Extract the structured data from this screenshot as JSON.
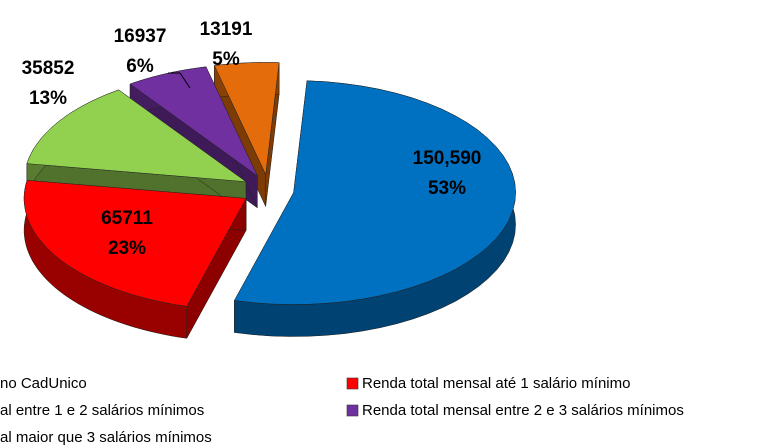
{
  "chart_data": {
    "type": "pie3d",
    "categories": [
      "no CadUnico",
      "Renda total mensal até 1 salário mínimo",
      "al entre 1 e 2 salários mínimos",
      "Renda total mensal entre 2 e 3 salários mínimos",
      "al maior que 3 salários mínimos"
    ],
    "values": [
      150590,
      65711,
      35852,
      16937,
      13191
    ],
    "value_labels": [
      "150,590",
      "65711",
      "35852",
      "16937",
      "13191"
    ],
    "percents": [
      53,
      23,
      13,
      6,
      5
    ],
    "percent_labels": [
      "53%",
      "23%",
      "13%",
      "6%",
      "5%"
    ],
    "colors": [
      "#0070c0",
      "#ff0000",
      "#92d050",
      "#7030a0",
      "#e46c0a"
    ]
  }
}
